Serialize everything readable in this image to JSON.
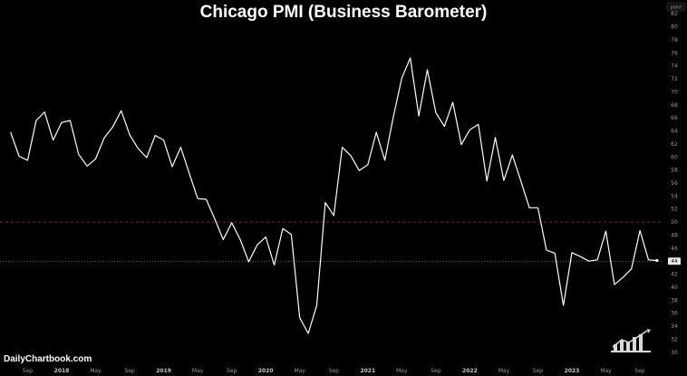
{
  "brand": "DailyChartbook.com",
  "unit_label": "point",
  "colors": {
    "background": "#000000",
    "line": "#ffffff",
    "ref50": "#b03030",
    "last_value_line": "#8a8a8a",
    "tick_text": "#9a9a9a"
  },
  "chart_data": {
    "type": "line",
    "title": "Chicago PMI (Business Barometer)",
    "xlabel": "",
    "ylabel": "",
    "ylim": [
      29,
      83
    ],
    "y_ticks": [
      30,
      32,
      34,
      36,
      38,
      40,
      42,
      44,
      46,
      48,
      50,
      52,
      54,
      56,
      58,
      60,
      62,
      64,
      66,
      68,
      70,
      72,
      74,
      76,
      78,
      80,
      82
    ],
    "x_ticks": [
      {
        "label": "Sep",
        "date": "2017-09",
        "bold": false
      },
      {
        "label": "2018",
        "date": "2018-01",
        "bold": true
      },
      {
        "label": "May",
        "date": "2018-05",
        "bold": false
      },
      {
        "label": "Sep",
        "date": "2018-09",
        "bold": false
      },
      {
        "label": "2019",
        "date": "2019-01",
        "bold": true
      },
      {
        "label": "May",
        "date": "2019-05",
        "bold": false
      },
      {
        "label": "Sep",
        "date": "2019-09",
        "bold": false
      },
      {
        "label": "2020",
        "date": "2020-01",
        "bold": true
      },
      {
        "label": "May",
        "date": "2020-05",
        "bold": false
      },
      {
        "label": "Sep",
        "date": "2020-09",
        "bold": false
      },
      {
        "label": "2021",
        "date": "2021-01",
        "bold": true
      },
      {
        "label": "May",
        "date": "2021-05",
        "bold": false
      },
      {
        "label": "Sep",
        "date": "2021-09",
        "bold": false
      },
      {
        "label": "2022",
        "date": "2022-01",
        "bold": true
      },
      {
        "label": "May",
        "date": "2022-05",
        "bold": false
      },
      {
        "label": "Sep",
        "date": "2022-09",
        "bold": false
      },
      {
        "label": "2023",
        "date": "2023-01",
        "bold": true
      },
      {
        "label": "May",
        "date": "2023-05",
        "bold": false
      },
      {
        "label": "Sep",
        "date": "2023-09",
        "bold": false
      }
    ],
    "reference_line": 50,
    "last_value": 44,
    "grid": false,
    "series": [
      {
        "values": [
          {
            "x": "2017-07",
            "y": 63.8
          },
          {
            "x": "2017-08",
            "y": 60.1
          },
          {
            "x": "2017-09",
            "y": 59.5
          },
          {
            "x": "2017-10",
            "y": 65.6
          },
          {
            "x": "2017-11",
            "y": 66.9
          },
          {
            "x": "2017-12",
            "y": 62.6
          },
          {
            "x": "2018-01",
            "y": 65.3
          },
          {
            "x": "2018-02",
            "y": 65.6
          },
          {
            "x": "2018-03",
            "y": 60.4
          },
          {
            "x": "2018-04",
            "y": 58.6
          },
          {
            "x": "2018-05",
            "y": 59.7
          },
          {
            "x": "2018-06",
            "y": 62.9
          },
          {
            "x": "2018-07",
            "y": 64.6
          },
          {
            "x": "2018-08",
            "y": 67.1
          },
          {
            "x": "2018-09",
            "y": 63.4
          },
          {
            "x": "2018-10",
            "y": 61.3
          },
          {
            "x": "2018-11",
            "y": 59.9
          },
          {
            "x": "2018-12",
            "y": 63.3
          },
          {
            "x": "2019-01",
            "y": 62.6
          },
          {
            "x": "2019-02",
            "y": 58.5
          },
          {
            "x": "2019-03",
            "y": 61.5
          },
          {
            "x": "2019-04",
            "y": 57.5
          },
          {
            "x": "2019-05",
            "y": 53.6
          },
          {
            "x": "2019-06",
            "y": 53.5
          },
          {
            "x": "2019-07",
            "y": 50.5
          },
          {
            "x": "2019-08",
            "y": 47.3
          },
          {
            "x": "2019-09",
            "y": 49.9
          },
          {
            "x": "2019-10",
            "y": 47.3
          },
          {
            "x": "2019-11",
            "y": 43.9
          },
          {
            "x": "2019-12",
            "y": 46.5
          },
          {
            "x": "2020-01",
            "y": 47.7
          },
          {
            "x": "2020-02",
            "y": 43.4
          },
          {
            "x": "2020-03",
            "y": 49.0
          },
          {
            "x": "2020-04",
            "y": 48.1
          },
          {
            "x": "2020-05",
            "y": 35.3
          },
          {
            "x": "2020-06",
            "y": 32.9
          },
          {
            "x": "2020-07",
            "y": 37.2
          },
          {
            "x": "2020-08",
            "y": 53.0
          },
          {
            "x": "2020-09",
            "y": 51.0
          },
          {
            "x": "2020-10",
            "y": 61.5
          },
          {
            "x": "2020-11",
            "y": 60.2
          },
          {
            "x": "2020-12",
            "y": 57.9
          },
          {
            "x": "2021-01",
            "y": 58.8
          },
          {
            "x": "2021-02",
            "y": 63.8
          },
          {
            "x": "2021-03",
            "y": 59.5
          },
          {
            "x": "2021-04",
            "y": 66.1
          },
          {
            "x": "2021-05",
            "y": 72.1
          },
          {
            "x": "2021-06",
            "y": 75.2
          },
          {
            "x": "2021-07",
            "y": 66.3
          },
          {
            "x": "2021-08",
            "y": 73.4
          },
          {
            "x": "2021-09",
            "y": 66.8
          },
          {
            "x": "2021-10",
            "y": 64.7
          },
          {
            "x": "2021-11",
            "y": 68.4
          },
          {
            "x": "2021-12",
            "y": 61.9
          },
          {
            "x": "2022-01",
            "y": 64.2
          },
          {
            "x": "2022-02",
            "y": 65.0
          },
          {
            "x": "2022-03",
            "y": 56.3
          },
          {
            "x": "2022-04",
            "y": 63.0
          },
          {
            "x": "2022-05",
            "y": 56.4
          },
          {
            "x": "2022-06",
            "y": 60.3
          },
          {
            "x": "2022-07",
            "y": 56.3
          },
          {
            "x": "2022-08",
            "y": 52.2
          },
          {
            "x": "2022-09",
            "y": 52.2
          },
          {
            "x": "2022-10",
            "y": 45.7
          },
          {
            "x": "2022-11",
            "y": 45.2
          },
          {
            "x": "2022-12",
            "y": 37.2
          },
          {
            "x": "2023-01",
            "y": 45.3
          },
          {
            "x": "2023-02",
            "y": 44.7
          },
          {
            "x": "2023-03",
            "y": 44.0
          },
          {
            "x": "2023-04",
            "y": 44.2
          },
          {
            "x": "2023-05",
            "y": 48.6
          },
          {
            "x": "2023-06",
            "y": 40.4
          },
          {
            "x": "2023-07",
            "y": 41.5
          },
          {
            "x": "2023-08",
            "y": 42.8
          },
          {
            "x": "2023-09",
            "y": 48.7
          },
          {
            "x": "2023-10",
            "y": 44.2
          },
          {
            "x": "2023-11",
            "y": 44.1
          }
        ]
      }
    ]
  }
}
